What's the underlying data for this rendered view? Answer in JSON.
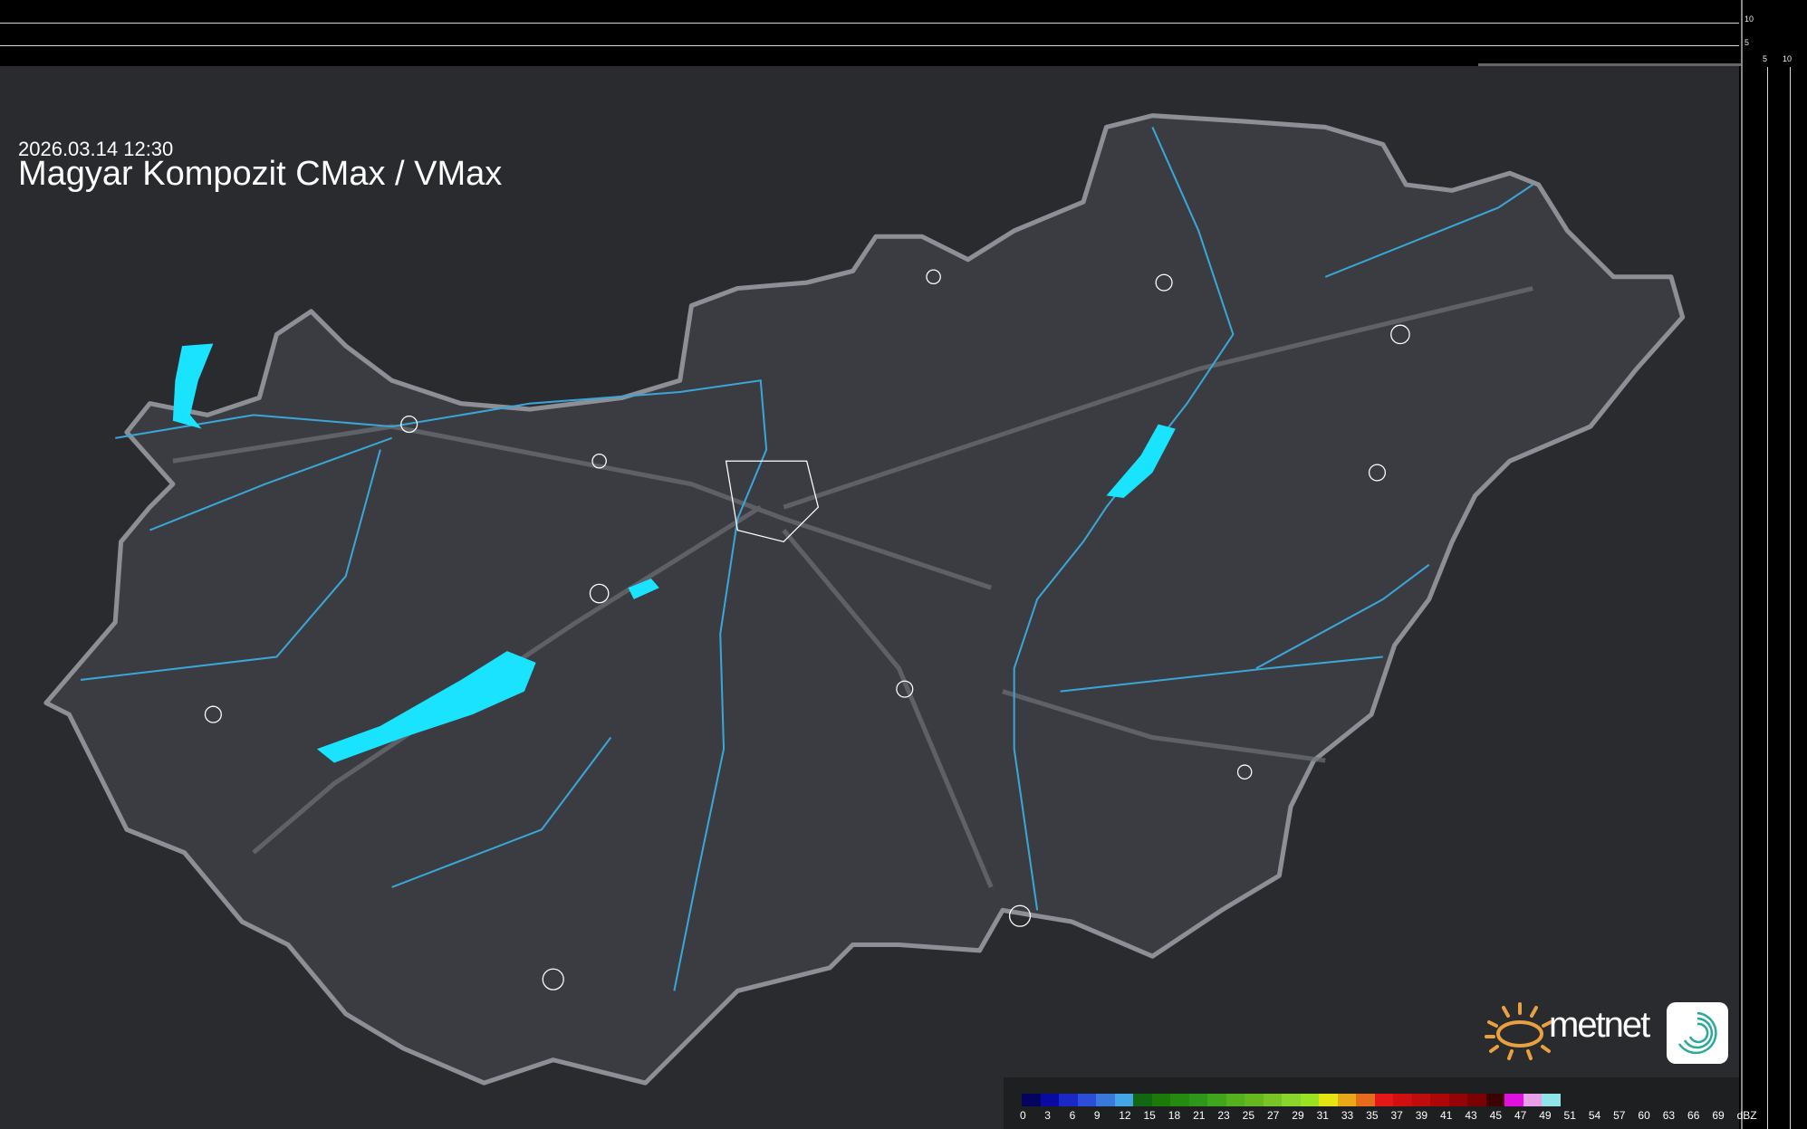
{
  "title": "Magyar Kompozit CMax / VMax",
  "timestamp": "2026.03.14 12:30",
  "scale_ticks": {
    "vertical": [
      "10",
      "5"
    ],
    "horizontal": [
      "5",
      "10"
    ]
  },
  "brand": {
    "name": "metnet",
    "icon": "spiral-app-icon",
    "sun_icon": "sun-icon"
  },
  "legend": {
    "unit": "dBZ",
    "labels": [
      "0",
      "3",
      "6",
      "9",
      "12",
      "15",
      "18",
      "21",
      "23",
      "25",
      "27",
      "29",
      "31",
      "33",
      "35",
      "37",
      "39",
      "41",
      "43",
      "45",
      "47",
      "49",
      "51",
      "54",
      "57",
      "60",
      "63",
      "66",
      "69"
    ],
    "colors": [
      "#04045e",
      "#0a0aa0",
      "#1a28c8",
      "#2a4ed8",
      "#3a78dc",
      "#44a6e4",
      "#126812",
      "#1c7a0a",
      "#248a10",
      "#2e961a",
      "#40a41c",
      "#54b01e",
      "#66b820",
      "#78c426",
      "#8ad42c",
      "#9ce224",
      "#e4e414",
      "#e8a818",
      "#e46c1c",
      "#e41818",
      "#d01010",
      "#c00c0c",
      "#ac0808",
      "#940404",
      "#7a0202",
      "#3c0202",
      "#e010e0",
      "#e8a0e8",
      "#90e4e8"
    ]
  },
  "colors": {
    "water": "#19e3ff",
    "river": "#3aa6d8",
    "border": "#8c8f96",
    "background": "#2a2b2e"
  }
}
